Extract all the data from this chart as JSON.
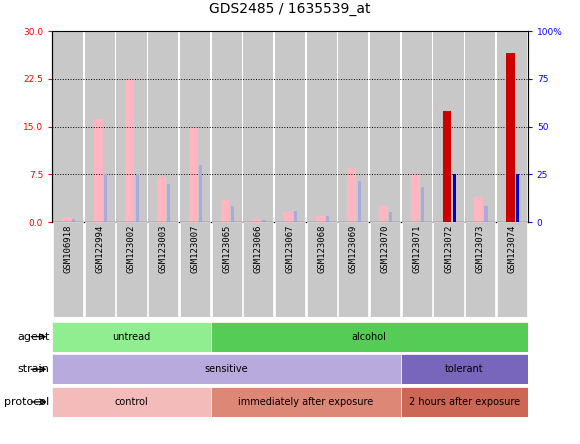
{
  "title": "GDS2485 / 1635539_at",
  "samples": [
    "GSM106918",
    "GSM122994",
    "GSM123002",
    "GSM123003",
    "GSM123007",
    "GSM123065",
    "GSM123066",
    "GSM123067",
    "GSM123068",
    "GSM123069",
    "GSM123070",
    "GSM123071",
    "GSM123072",
    "GSM123073",
    "GSM123074"
  ],
  "value_absent": [
    0.8,
    16.2,
    22.5,
    7.0,
    15.0,
    3.5,
    0.5,
    1.5,
    1.0,
    8.5,
    2.5,
    7.5,
    0.0,
    4.0,
    0.0
  ],
  "rank_absent": [
    0.5,
    7.5,
    7.5,
    6.0,
    9.0,
    2.5,
    0.3,
    1.8,
    1.0,
    6.5,
    1.5,
    5.5,
    0.0,
    2.5,
    0.0
  ],
  "count_red": [
    0.0,
    0.0,
    0.0,
    0.0,
    0.0,
    0.0,
    0.0,
    0.0,
    0.0,
    0.0,
    0.0,
    0.0,
    17.5,
    0.0,
    26.5
  ],
  "percentile_blue": [
    0.0,
    0.0,
    0.0,
    0.0,
    0.0,
    0.0,
    0.0,
    0.0,
    0.0,
    0.0,
    0.0,
    0.0,
    7.5,
    0.0,
    7.5
  ],
  "ylim_left": [
    0,
    30
  ],
  "ylim_right": [
    0,
    100
  ],
  "yticks_left": [
    0,
    7.5,
    15,
    22.5,
    30
  ],
  "yticks_right": [
    0,
    25,
    50,
    75,
    100
  ],
  "agent_groups": [
    {
      "label": "untread",
      "start": 0,
      "end": 5,
      "color": "#90EE90"
    },
    {
      "label": "alcohol",
      "start": 5,
      "end": 15,
      "color": "#55CC55"
    }
  ],
  "strain_groups": [
    {
      "label": "sensitive",
      "start": 0,
      "end": 11,
      "color": "#B8AADD"
    },
    {
      "label": "tolerant",
      "start": 11,
      "end": 15,
      "color": "#7766BB"
    }
  ],
  "protocol_groups": [
    {
      "label": "control",
      "start": 0,
      "end": 5,
      "color": "#F4BBBB"
    },
    {
      "label": "immediately after exposure",
      "start": 5,
      "end": 11,
      "color": "#DD8877"
    },
    {
      "label": "2 hours after exposure",
      "start": 11,
      "end": 15,
      "color": "#CC6655"
    }
  ],
  "color_value_absent": "#FFB6C1",
  "color_rank_absent": "#AAAADD",
  "color_count": "#CC0000",
  "color_percentile": "#0000CC",
  "color_col_bg": "#C8C8C8",
  "color_chart_bg": "#FFFFFF",
  "title_fontsize": 10,
  "tick_fontsize": 6.5,
  "label_fontsize": 8,
  "ann_label_fontsize": 8,
  "legend_fontsize": 7.5,
  "bar_width": 0.6
}
